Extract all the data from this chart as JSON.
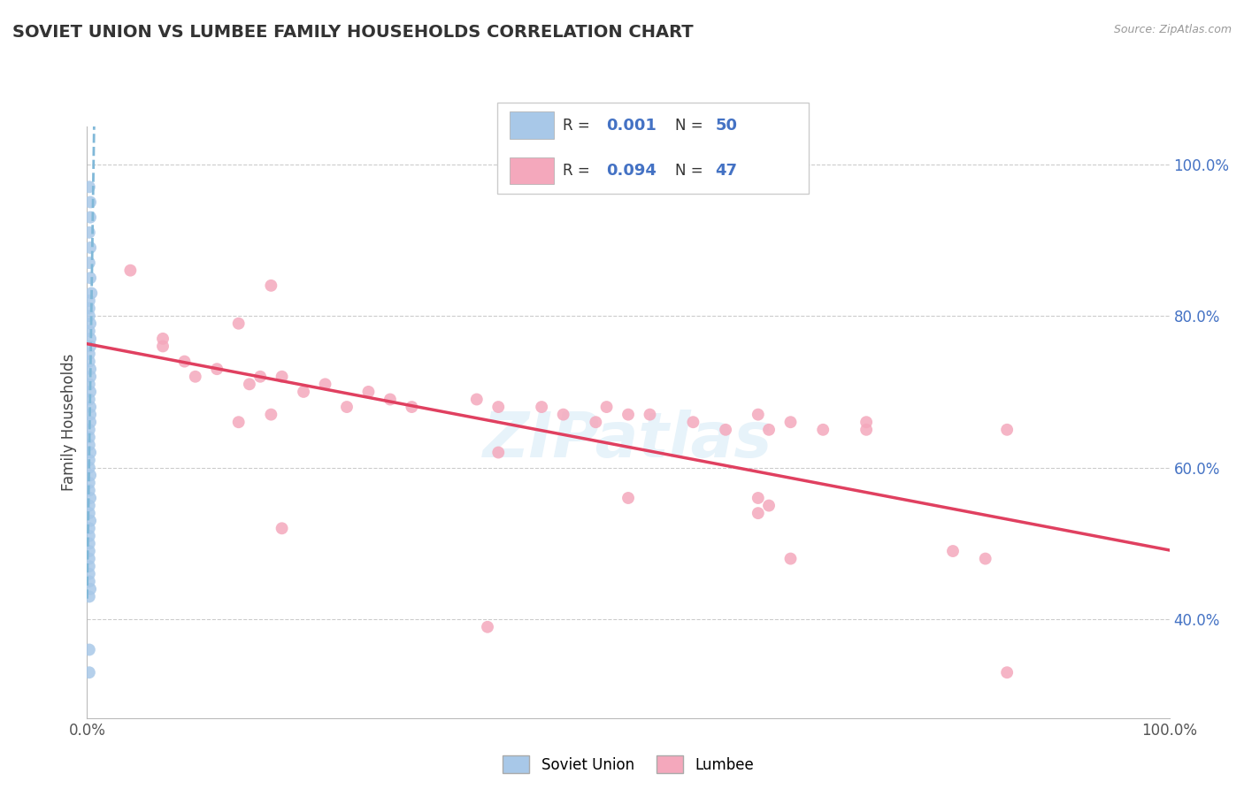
{
  "title": "SOVIET UNION VS LUMBEE FAMILY HOUSEHOLDS CORRELATION CHART",
  "source": "Source: ZipAtlas.com",
  "ylabel": "Family Households",
  "legend_labels": [
    "Soviet Union",
    "Lumbee"
  ],
  "soviet_R": "0.001",
  "soviet_N": "50",
  "lumbee_R": "0.094",
  "lumbee_N": "47",
  "soviet_color": "#a8c8e8",
  "lumbee_color": "#f4a8bc",
  "soviet_trend_color": "#80b8d8",
  "lumbee_trend_color": "#e04060",
  "background_color": "#ffffff",
  "grid_color": "#cccccc",
  "xlim": [
    0.0,
    1.0
  ],
  "ylim": [
    0.27,
    1.05
  ],
  "right_ytick_labels": [
    "40.0%",
    "60.0%",
    "80.0%",
    "100.0%"
  ],
  "right_ytick_values": [
    0.4,
    0.6,
    0.8,
    1.0
  ],
  "watermark": "ZIPatlas",
  "soviet_x": [
    0.002,
    0.003,
    0.003,
    0.002,
    0.003,
    0.002,
    0.003,
    0.004,
    0.002,
    0.002,
    0.002,
    0.003,
    0.002,
    0.003,
    0.003,
    0.002,
    0.002,
    0.003,
    0.003,
    0.002,
    0.003,
    0.002,
    0.003,
    0.003,
    0.003,
    0.002,
    0.002,
    0.002,
    0.003,
    0.002,
    0.002,
    0.003,
    0.002,
    0.002,
    0.003,
    0.002,
    0.002,
    0.003,
    0.002,
    0.002,
    0.002,
    0.002,
    0.002,
    0.002,
    0.002,
    0.002,
    0.003,
    0.002,
    0.002,
    0.002
  ],
  "soviet_y": [
    0.97,
    0.95,
    0.93,
    0.91,
    0.89,
    0.87,
    0.85,
    0.83,
    0.82,
    0.81,
    0.8,
    0.79,
    0.78,
    0.77,
    0.76,
    0.75,
    0.74,
    0.73,
    0.72,
    0.71,
    0.7,
    0.69,
    0.68,
    0.67,
    0.66,
    0.65,
    0.64,
    0.63,
    0.62,
    0.61,
    0.6,
    0.59,
    0.58,
    0.57,
    0.56,
    0.55,
    0.54,
    0.53,
    0.52,
    0.51,
    0.5,
    0.49,
    0.48,
    0.47,
    0.46,
    0.45,
    0.44,
    0.43,
    0.36,
    0.33
  ],
  "lumbee_x": [
    0.04,
    0.17,
    0.14,
    0.07,
    0.07,
    0.09,
    0.12,
    0.1,
    0.16,
    0.15,
    0.18,
    0.22,
    0.2,
    0.24,
    0.17,
    0.14,
    0.26,
    0.28,
    0.3,
    0.36,
    0.38,
    0.42,
    0.44,
    0.47,
    0.5,
    0.48,
    0.52,
    0.56,
    0.59,
    0.62,
    0.63,
    0.65,
    0.68,
    0.72,
    0.72,
    0.38,
    0.5,
    0.62,
    0.63,
    0.18,
    0.65,
    0.8,
    0.83,
    0.85,
    0.37,
    0.62,
    0.85
  ],
  "lumbee_y": [
    0.86,
    0.84,
    0.79,
    0.77,
    0.76,
    0.74,
    0.73,
    0.72,
    0.72,
    0.71,
    0.72,
    0.71,
    0.7,
    0.68,
    0.67,
    0.66,
    0.7,
    0.69,
    0.68,
    0.69,
    0.68,
    0.68,
    0.67,
    0.66,
    0.67,
    0.68,
    0.67,
    0.66,
    0.65,
    0.67,
    0.65,
    0.66,
    0.65,
    0.66,
    0.65,
    0.62,
    0.56,
    0.56,
    0.55,
    0.52,
    0.48,
    0.49,
    0.48,
    0.65,
    0.39,
    0.54,
    0.33
  ]
}
